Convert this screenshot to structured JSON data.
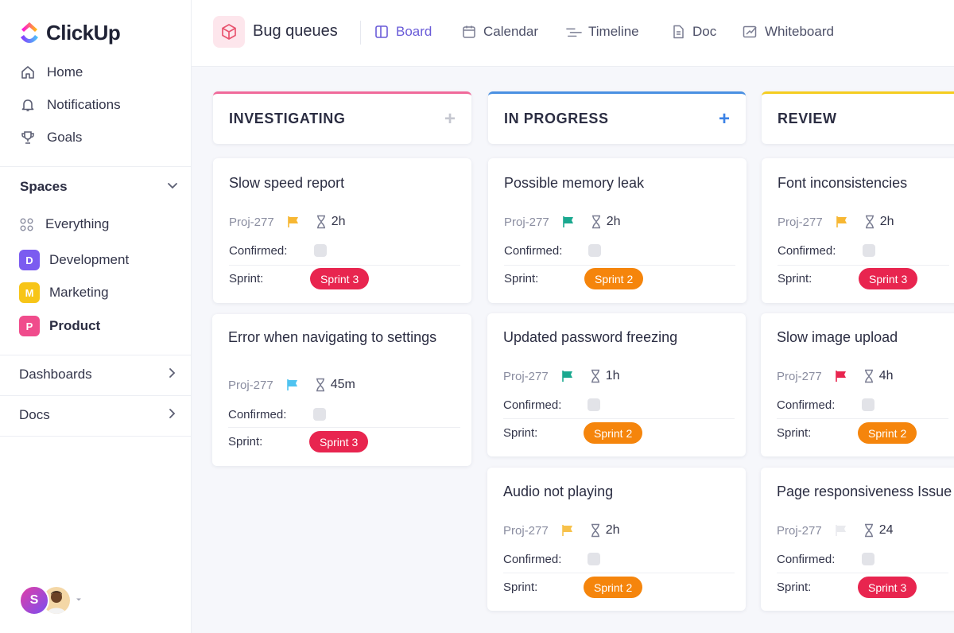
{
  "brand": {
    "name": "ClickUp"
  },
  "sidebar": {
    "nav": [
      {
        "label": "Home",
        "icon": "home-icon"
      },
      {
        "label": "Notifications",
        "icon": "bell-icon"
      },
      {
        "label": "Goals",
        "icon": "trophy-icon"
      }
    ],
    "spaces_title": "Spaces",
    "spaces": [
      {
        "label": "Everything",
        "icon": "grid-icon"
      },
      {
        "label": "Development",
        "badge": "D",
        "color": "#7b5cf0"
      },
      {
        "label": "Marketing",
        "badge": "M",
        "color": "#f7c518"
      },
      {
        "label": "Product",
        "badge": "P",
        "color": "#f04c8c",
        "active": true
      }
    ],
    "sections": [
      {
        "label": "Dashboards"
      },
      {
        "label": "Docs"
      }
    ],
    "user": {
      "initial": "S"
    }
  },
  "header": {
    "title": "Bug queues",
    "tabs": [
      {
        "label": "Board",
        "icon": "board-icon",
        "active": true
      },
      {
        "label": "Calendar",
        "icon": "calendar-icon"
      },
      {
        "label": "Timeline",
        "icon": "timeline-icon"
      },
      {
        "label": "Doc",
        "icon": "doc-icon"
      },
      {
        "label": "Whiteboard",
        "icon": "whiteboard-icon"
      }
    ]
  },
  "board": {
    "columns": [
      {
        "title": "INVESTIGATING",
        "accent": "#f06a9a",
        "plus": "+",
        "cards": [
          {
            "title": "Slow speed report",
            "id": "Proj-277",
            "flag": "#f7b733",
            "duration": "2h",
            "confirmed_label": "Confirmed:",
            "sprint_label": "Sprint:",
            "sprint": "Sprint 3",
            "sprint_color": "#e8254f"
          },
          {
            "title": "Error when navigating to settings",
            "id": "Proj-277",
            "flag": "#4fc3f0",
            "duration": "45m",
            "confirmed_label": "Confirmed:",
            "sprint_label": "Sprint:",
            "sprint": "Sprint 3",
            "sprint_color": "#e8254f"
          }
        ]
      },
      {
        "title": "IN PROGRESS",
        "accent": "#4a90e2",
        "plus": "+",
        "cards": [
          {
            "title": "Possible memory leak",
            "id": "Proj-277",
            "flag": "#1aa88f",
            "duration": "2h",
            "confirmed_label": "Confirmed:",
            "sprint_label": "Sprint:",
            "sprint": "Sprint 2",
            "sprint_color": "#f5850c"
          },
          {
            "title": "Updated password freezing",
            "id": "Proj-277",
            "flag": "#1aa88f",
            "duration": "1h",
            "confirmed_label": "Confirmed:",
            "sprint_label": "Sprint:",
            "sprint": "Sprint 2",
            "sprint_color": "#f5850c"
          },
          {
            "title": "Audio not playing",
            "id": "Proj-277",
            "flag": "#f7c14a",
            "duration": "2h",
            "confirmed_label": "Confirmed:",
            "sprint_label": "Sprint:",
            "sprint": "Sprint 2",
            "sprint_color": "#f5850c"
          }
        ]
      },
      {
        "title": "REVIEW",
        "accent": "#f5cd1f",
        "plus": "",
        "cards": [
          {
            "title": "Font inconsistencies",
            "id": "Proj-277",
            "flag": "#f7b733",
            "duration": "2h",
            "confirmed_label": "Confirmed:",
            "sprint_label": "Sprint:",
            "sprint": "Sprint 3",
            "sprint_color": "#e8254f"
          },
          {
            "title": "Slow image upload",
            "id": "Proj-277",
            "flag": "#e8254f",
            "duration": "4h",
            "confirmed_label": "Confirmed:",
            "sprint_label": "Sprint:",
            "sprint": "Sprint 2",
            "sprint_color": "#f5850c"
          },
          {
            "title": "Page responsiveness Issue",
            "id": "Proj-277",
            "flag": "#e9eaee",
            "duration": "24",
            "confirmed_label": "Confirmed:",
            "sprint_label": "Sprint:",
            "sprint": "Sprint 3",
            "sprint_color": "#e8254f"
          }
        ]
      }
    ]
  }
}
